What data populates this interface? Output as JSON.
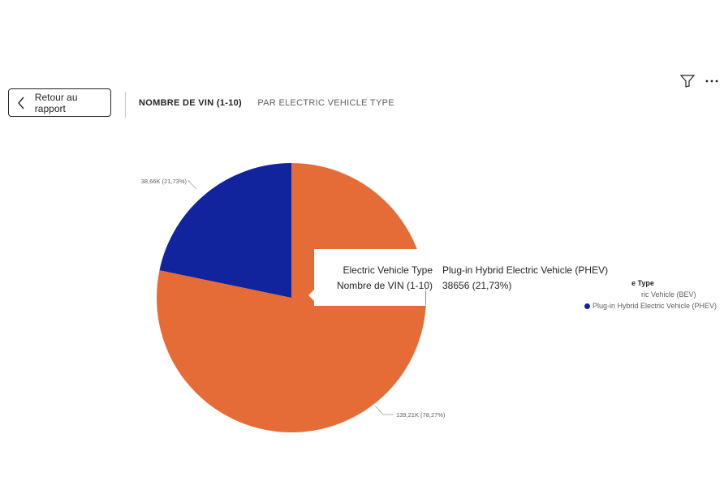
{
  "header": {
    "back_label": "Retour au rapport",
    "title_measure": "NOMBRE DE VIN (1-10)",
    "title_by": "PAR ELECTRIC VEHICLE TYPE"
  },
  "icons": {
    "back": "chevron-left-icon",
    "filter": "filter-icon",
    "more": "more-options-icon"
  },
  "legend": {
    "title_visible": "e Type",
    "items": [
      {
        "label_visible": "ric Vehicle (BEV)",
        "color": "#E66C37"
      },
      {
        "label_visible": "Plug-in Hybrid Electric Vehicle (PHEV)",
        "color": "#12239E"
      }
    ]
  },
  "tooltip": {
    "rows": [
      {
        "key": "Electric Vehicle Type",
        "value": "Plug-in Hybrid Electric Vehicle (PHEV)"
      },
      {
        "key": "Nombre de VIN (1-10)",
        "value": "38656 (21,73%)"
      }
    ]
  },
  "chart_data": {
    "type": "pie",
    "title": "NOMBRE DE VIN (1-10) PAR ELECTRIC VEHICLE TYPE",
    "series": [
      {
        "name": "Battery Electric Vehicle (BEV)",
        "value": 139210,
        "percent": 78.27,
        "label": "139,21K (78,27%)",
        "color": "#E66C37"
      },
      {
        "name": "Plug-in Hybrid Electric Vehicle (PHEV)",
        "value": 38656,
        "percent": 21.73,
        "label": "38,66K (21,73%)",
        "color": "#12239E"
      }
    ],
    "legend_position": "right"
  }
}
